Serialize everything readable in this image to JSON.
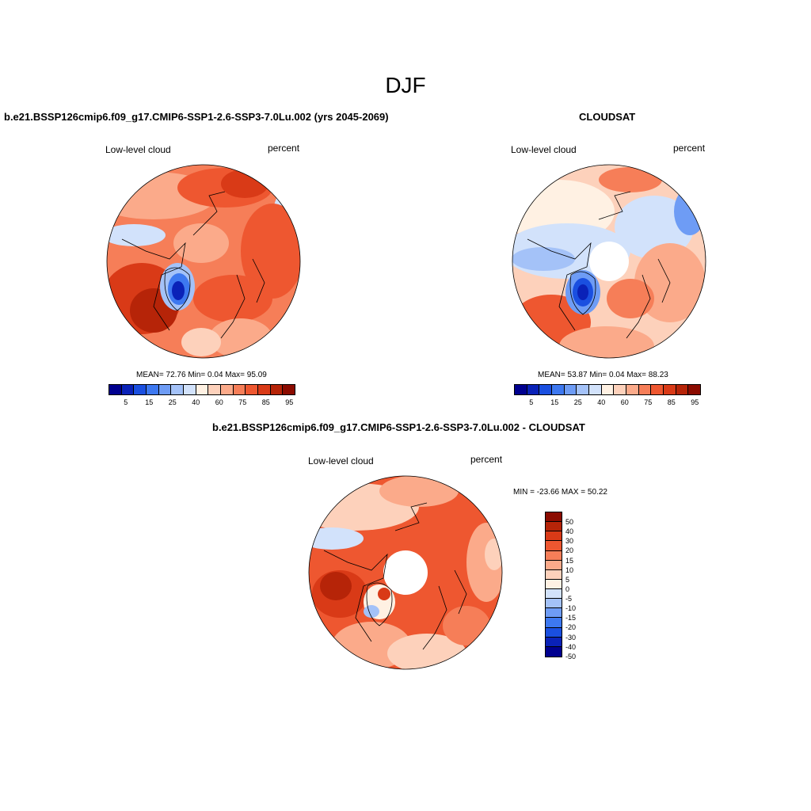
{
  "main_title": "DJF",
  "panels": [
    {
      "title": "b.e21.BSSP126cmip6.f09_g17.CMIP6-SSP1-2.6-SSP3-7.0Lu.002 (yrs 2045-2069)",
      "left_label": "Low-level cloud",
      "right_label": "percent",
      "stats": "MEAN=  72.76  Min=   0.04  Max=  95.09"
    },
    {
      "title": "CLOUDSAT",
      "left_label": "Low-level cloud",
      "right_label": "percent",
      "stats": "MEAN=  53.87  Min=   0.04  Max=  88.23"
    },
    {
      "title": "b.e21.BSSP126cmip6.f09_g17.CMIP6-SSP1-2.6-SSP3-7.0Lu.002 - CLOUDSAT",
      "left_label": "Low-level cloud",
      "right_label": "percent",
      "stats": "MIN = -23.66 MAX =  50.22"
    }
  ],
  "field_colorbar": {
    "colors": [
      "#00008f",
      "#0a22b8",
      "#1a4fe0",
      "#3d78f0",
      "#6e9cf5",
      "#a4c2f8",
      "#d2e2fb",
      "#fff1e3",
      "#fdd1bb",
      "#fbaa8a",
      "#f67e58",
      "#ee5730",
      "#d93a17",
      "#b62408",
      "#8b0b00"
    ],
    "labels": [
      "5",
      "15",
      "25",
      "40",
      "60",
      "75",
      "85",
      "95"
    ]
  },
  "diff_colorbar": {
    "colors": [
      "#8b0b00",
      "#b62408",
      "#d93a17",
      "#ee5730",
      "#f67e58",
      "#fbaa8a",
      "#fdd1bb",
      "#fff1e3",
      "#d2e2fb",
      "#a4c2f8",
      "#6e9cf5",
      "#3d78f0",
      "#1a4fe0",
      "#0a22b8",
      "#00008f"
    ],
    "labels": [
      "50",
      "40",
      "30",
      "20",
      "15",
      "10",
      "5",
      "0",
      "-5",
      "-10",
      "-15",
      "-20",
      "-30",
      "-40",
      "-50"
    ]
  }
}
